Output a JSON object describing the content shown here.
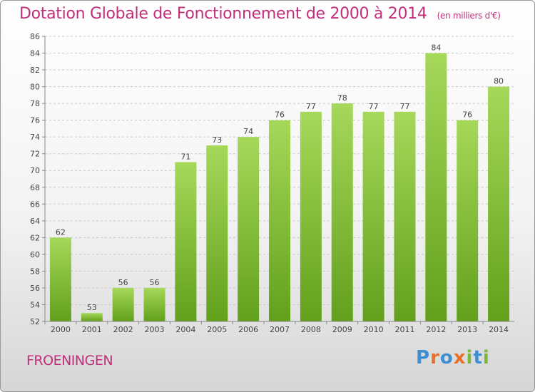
{
  "title": "Dotation Globale de Fonctionnement de 2000 à 2014",
  "subtitle": "(en milliers d'€)",
  "town": "FROENINGEN",
  "logo": {
    "letters": [
      "P",
      "r",
      "o",
      "x",
      "i",
      "t",
      "i"
    ],
    "colors": [
      "#3d8fd1",
      "#e8702a",
      "#3d8fd1",
      "#e8702a",
      "#7ab83a",
      "#3d8fd1",
      "#7ab83a"
    ]
  },
  "colors": {
    "bar": "#7dbb2f",
    "bar_top": "#a6d85a",
    "title": "#c0307a"
  },
  "chart_data": {
    "type": "bar",
    "categories": [
      "2000",
      "2001",
      "2002",
      "2003",
      "2004",
      "2005",
      "2006",
      "2007",
      "2008",
      "2009",
      "2010",
      "2011",
      "2012",
      "2013",
      "2014"
    ],
    "values": [
      62,
      53,
      56,
      56,
      71,
      73,
      74,
      76,
      77,
      78,
      77,
      77,
      84,
      76,
      80
    ],
    "ylim": [
      52,
      86
    ],
    "yticks": [
      52,
      54,
      56,
      58,
      60,
      62,
      64,
      66,
      68,
      70,
      72,
      74,
      76,
      78,
      80,
      82,
      84,
      86
    ],
    "grid": true,
    "xlabel": "",
    "ylabel": ""
  }
}
